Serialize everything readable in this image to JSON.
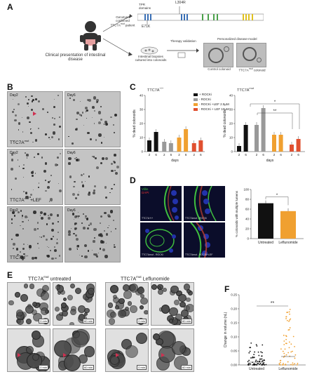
{
  "panels": {
    "a": {
      "label": "A",
      "clinical": "Clinical presentation of intestinal disease",
      "genotype": "Genotype confirmed TTC7A",
      "genotype_sup": "mut",
      "genotype_suffix": " patient",
      "tpr": "TPR domains",
      "mut1": "L304R",
      "mut2": "E71K",
      "biopsy": "Intestinal biopsies cultured into colonoids",
      "therapy": "Therapy validation",
      "personalized": "Personalized disease-model",
      "control": "Control colonoid",
      "mutcolonoid": "TTC7A",
      "mutcolonoid_sup": "mut",
      "mutcolonoid_suffix": " colonoid",
      "colors": {
        "tpr1": "#3a6fb5",
        "tpr2": "#4aa04a",
        "tpr3": "#e0c020"
      }
    },
    "b": {
      "label": "B",
      "day2": "Day2",
      "day6": "Day6",
      "row1": "TTC7A",
      "row1_sup": "mut",
      "row2": "TTC7A",
      "row2_sup": "mut",
      "row2_suffix": " +LEF",
      "row3": "TTC7A",
      "row3_sup": "+/+"
    },
    "c": {
      "label": "C",
      "title_left": "TTC7A",
      "title_left_sup": "+/+",
      "title_right": "TTC7A",
      "title_right_sup": "mut",
      "ylabel": "% dead colonoids",
      "xlabel": "days",
      "legend": [
        "+ ROCKi",
        "- ROCKi",
        "- ROCKi +LEF 2.5μM",
        "- ROCKi + LEF 10μM"
      ],
      "sig_star1": "*",
      "sig_star2": "**"
    },
    "d": {
      "label": "D",
      "villin": "Villin",
      "dapi": "DAPI",
      "img1": "TTC7A+/+",
      "img2": "TTC7Amut - ROCKi",
      "img3": "TTC7Amut - ROCKi",
      "img4": "TTC7Amut - ROCKi+LEF",
      "ylabel": "% colonoids with multiple lumens",
      "sig": "*"
    },
    "e": {
      "label": "E",
      "untreated_title": "TTC7A",
      "untreated_sup": "mut",
      "untreated_suffix": " untreated",
      "lef_title": "TTC7A",
      "lef_sup": "mut",
      "lef_suffix": " Leflunomide",
      "t0": "0 min",
      "t60": "60 min"
    },
    "f": {
      "label": "F",
      "ylabel": "Change in volume (nL)",
      "sig": "**"
    }
  },
  "chart_data": [
    {
      "type": "bar",
      "panel": "C-left",
      "categories": [
        "2",
        "6"
      ],
      "series": [
        {
          "name": "+ ROCKi",
          "color": "#111111",
          "values": [
            8,
            14
          ]
        },
        {
          "name": "- ROCKi",
          "color": "#999999",
          "values": [
            7,
            6
          ]
        },
        {
          "name": "- ROCKi +LEF 2.5μM",
          "color": "#f0a030",
          "values": [
            10,
            16
          ]
        },
        {
          "name": "- ROCKi + LEF 10μM",
          "color": "#e05030",
          "values": [
            6,
            8
          ]
        }
      ],
      "ylim": [
        0,
        40
      ],
      "yticks": [
        0,
        10,
        20,
        30,
        40
      ]
    },
    {
      "type": "bar",
      "panel": "C-right",
      "categories": [
        "2",
        "6"
      ],
      "series": [
        {
          "name": "+ ROCKi",
          "color": "#111111",
          "values": [
            4,
            19
          ]
        },
        {
          "name": "- ROCKi",
          "color": "#999999",
          "values": [
            19,
            31
          ]
        },
        {
          "name": "- ROCKi +LEF 2.5μM",
          "color": "#f0a030",
          "values": [
            12,
            12
          ]
        },
        {
          "name": "- ROCKi + LEF 10μM",
          "color": "#e05030",
          "values": [
            5,
            9
          ]
        }
      ],
      "ylim": [
        0,
        40
      ],
      "yticks": [
        0,
        10,
        20,
        30,
        40
      ]
    },
    {
      "type": "bar",
      "panel": "D-chart",
      "categories": [
        "Untreated",
        "Leflunomide"
      ],
      "values": [
        72,
        56
      ],
      "colors": [
        "#111111",
        "#f0a030"
      ],
      "ylim": [
        0,
        100
      ],
      "yticks": [
        0,
        20,
        40,
        60,
        80,
        100
      ]
    },
    {
      "type": "scatter",
      "panel": "F",
      "categories": [
        "Untreated",
        "Leflunomide"
      ],
      "ylim": [
        0,
        0.25
      ],
      "yticks": [
        0.0,
        0.05,
        0.1,
        0.15,
        0.2,
        0.25
      ],
      "medians": [
        0.01,
        0.03
      ],
      "colors": [
        "#111111",
        "#f0a030"
      ]
    }
  ]
}
